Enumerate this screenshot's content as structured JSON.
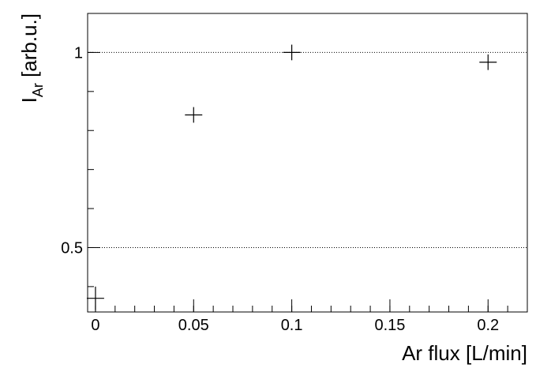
{
  "chart_data": {
    "type": "scatter",
    "title": "",
    "xlabel": "Ar flux [L/min]",
    "ylabel": {
      "main": "I",
      "sub": "Ar",
      "unit": " [arb.u.]"
    },
    "xlim": [
      -0.004,
      0.22
    ],
    "ylim": [
      0.335,
      1.1
    ],
    "x_ticks": [
      0,
      0.05,
      0.1,
      0.15,
      0.2
    ],
    "x_tick_labels": [
      "0",
      "0.05",
      "0.1",
      "0.15",
      "0.2"
    ],
    "x_minor_step": 0.01,
    "y_ticks": [
      0.5,
      1
    ],
    "y_tick_labels": [
      "0.5",
      "1"
    ],
    "y_minor_step": 0.1,
    "grid": {
      "x": false,
      "y": true,
      "style": "dotted"
    },
    "legend": "none",
    "points": [
      {
        "x": 0.0,
        "y": 0.37,
        "xerr": 0.002,
        "yerr": 0.03
      },
      {
        "x": 0.05,
        "y": 0.84,
        "xerr": 0.002,
        "yerr": 0.02
      },
      {
        "x": 0.1,
        "y": 1.0,
        "xerr": 0.002,
        "yerr": 0.02
      },
      {
        "x": 0.2,
        "y": 0.975,
        "xerr": 0.002,
        "yerr": 0.02
      }
    ]
  }
}
